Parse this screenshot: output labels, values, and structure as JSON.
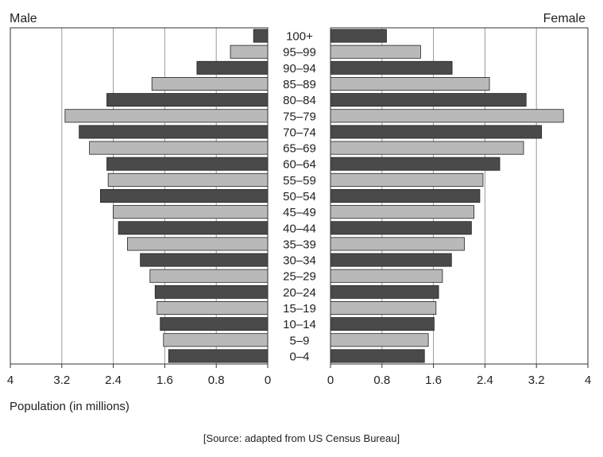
{
  "chart_data": {
    "type": "bar",
    "orientation": "horizontal",
    "layout": "population-pyramid",
    "categories": [
      "100+",
      "95–99",
      "90–94",
      "85–89",
      "80–84",
      "75–79",
      "70–74",
      "65–69",
      "60–64",
      "55–59",
      "50–54",
      "45–49",
      "40–44",
      "35–39",
      "30–34",
      "25–29",
      "20–24",
      "15–19",
      "10–14",
      "5–9",
      "0–4"
    ],
    "series": [
      {
        "name": "Male",
        "values": [
          0.22,
          0.58,
          1.1,
          1.8,
          2.5,
          3.15,
          2.93,
          2.77,
          2.5,
          2.48,
          2.6,
          2.4,
          2.32,
          2.18,
          1.98,
          1.83,
          1.75,
          1.72,
          1.67,
          1.62,
          1.54
        ]
      },
      {
        "name": "Female",
        "values": [
          0.87,
          1.4,
          1.89,
          2.47,
          3.04,
          3.62,
          3.28,
          3.0,
          2.63,
          2.37,
          2.32,
          2.23,
          2.19,
          2.08,
          1.88,
          1.74,
          1.68,
          1.64,
          1.61,
          1.52,
          1.46
        ]
      }
    ],
    "xlabel": "Population (in millions)",
    "xlim": [
      0,
      4
    ],
    "left_ticks": [
      "4",
      "3.2",
      "2.4",
      "1.6",
      "0.8",
      "0"
    ],
    "right_ticks": [
      "0",
      "0.8",
      "1.6",
      "2.4",
      "3.2",
      "4"
    ],
    "tick_values": [
      0,
      0.8,
      1.6,
      2.4,
      3.2,
      4
    ],
    "grid": true,
    "colors": {
      "dark": "#4a4a4a",
      "light": "#b9b9b9",
      "grid": "#9a9a9a",
      "frame": "#333333"
    }
  },
  "labels": {
    "male": "Male",
    "female": "Female",
    "source": "[Source: adapted from US Census Bureau]"
  }
}
